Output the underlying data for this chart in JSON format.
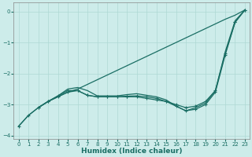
{
  "xlabel": "Humidex (Indice chaleur)",
  "bg_color": "#cdecea",
  "grid_color": "#aed8d4",
  "line_color": "#1a6e64",
  "xlim": [
    -0.5,
    23.5
  ],
  "ylim": [
    -4.1,
    0.3
  ],
  "yticks": [
    0,
    -1,
    -2,
    -3,
    -4
  ],
  "xticks": [
    0,
    1,
    2,
    3,
    4,
    5,
    6,
    7,
    8,
    9,
    10,
    11,
    12,
    13,
    14,
    15,
    16,
    17,
    18,
    19,
    20,
    21,
    22,
    23
  ],
  "line1_x": [
    0,
    1,
    2,
    3,
    4,
    5,
    6,
    7,
    8,
    9,
    10,
    11,
    12,
    13,
    14,
    15,
    16,
    17,
    18,
    19,
    20,
    21,
    22,
    23
  ],
  "line1_y": [
    -3.7,
    -3.35,
    -3.1,
    -2.9,
    -2.75,
    -2.6,
    -2.5,
    -2.35,
    -2.2,
    -2.05,
    -1.9,
    -1.75,
    -1.6,
    -1.45,
    -1.3,
    -1.15,
    -1.0,
    -0.85,
    -0.7,
    -0.55,
    -0.4,
    -0.25,
    -0.12,
    0.05
  ],
  "line2_x": [
    0,
    1,
    2,
    3,
    4,
    5,
    6,
    7,
    8,
    9,
    10,
    11,
    12,
    13,
    14,
    15,
    16,
    17,
    18,
    19,
    20,
    21,
    22,
    23
  ],
  "line2_y": [
    -3.7,
    -3.35,
    -3.1,
    -2.9,
    -2.75,
    -2.6,
    -2.55,
    -2.7,
    -2.75,
    -2.75,
    -2.75,
    -2.75,
    -2.75,
    -2.8,
    -2.85,
    -2.9,
    -3.05,
    -3.2,
    -3.15,
    -3.0,
    -2.6,
    -1.4,
    -0.35,
    0.05
  ],
  "line3_x": [
    2,
    3,
    4,
    5,
    6,
    7,
    8,
    9,
    10,
    11,
    12,
    13,
    14,
    15,
    16,
    17,
    18,
    19,
    20,
    21,
    22,
    23
  ],
  "line3_y": [
    -3.1,
    -2.9,
    -2.72,
    -2.55,
    -2.55,
    -2.7,
    -2.75,
    -2.75,
    -2.75,
    -2.73,
    -2.72,
    -2.75,
    -2.8,
    -2.9,
    -3.0,
    -3.1,
    -3.05,
    -2.9,
    -2.55,
    -1.35,
    -0.35,
    0.05
  ],
  "line4_x": [
    2,
    3,
    4,
    5,
    6,
    7,
    8,
    9,
    10,
    11,
    12,
    13,
    14,
    15,
    16,
    17,
    18,
    19,
    20,
    21,
    22,
    23
  ],
  "line4_y": [
    -3.1,
    -2.9,
    -2.72,
    -2.5,
    -2.45,
    -2.55,
    -2.72,
    -2.72,
    -2.72,
    -2.68,
    -2.65,
    -2.7,
    -2.75,
    -2.85,
    -3.05,
    -3.2,
    -3.1,
    -2.95,
    -2.55,
    -1.3,
    -0.3,
    0.05
  ]
}
